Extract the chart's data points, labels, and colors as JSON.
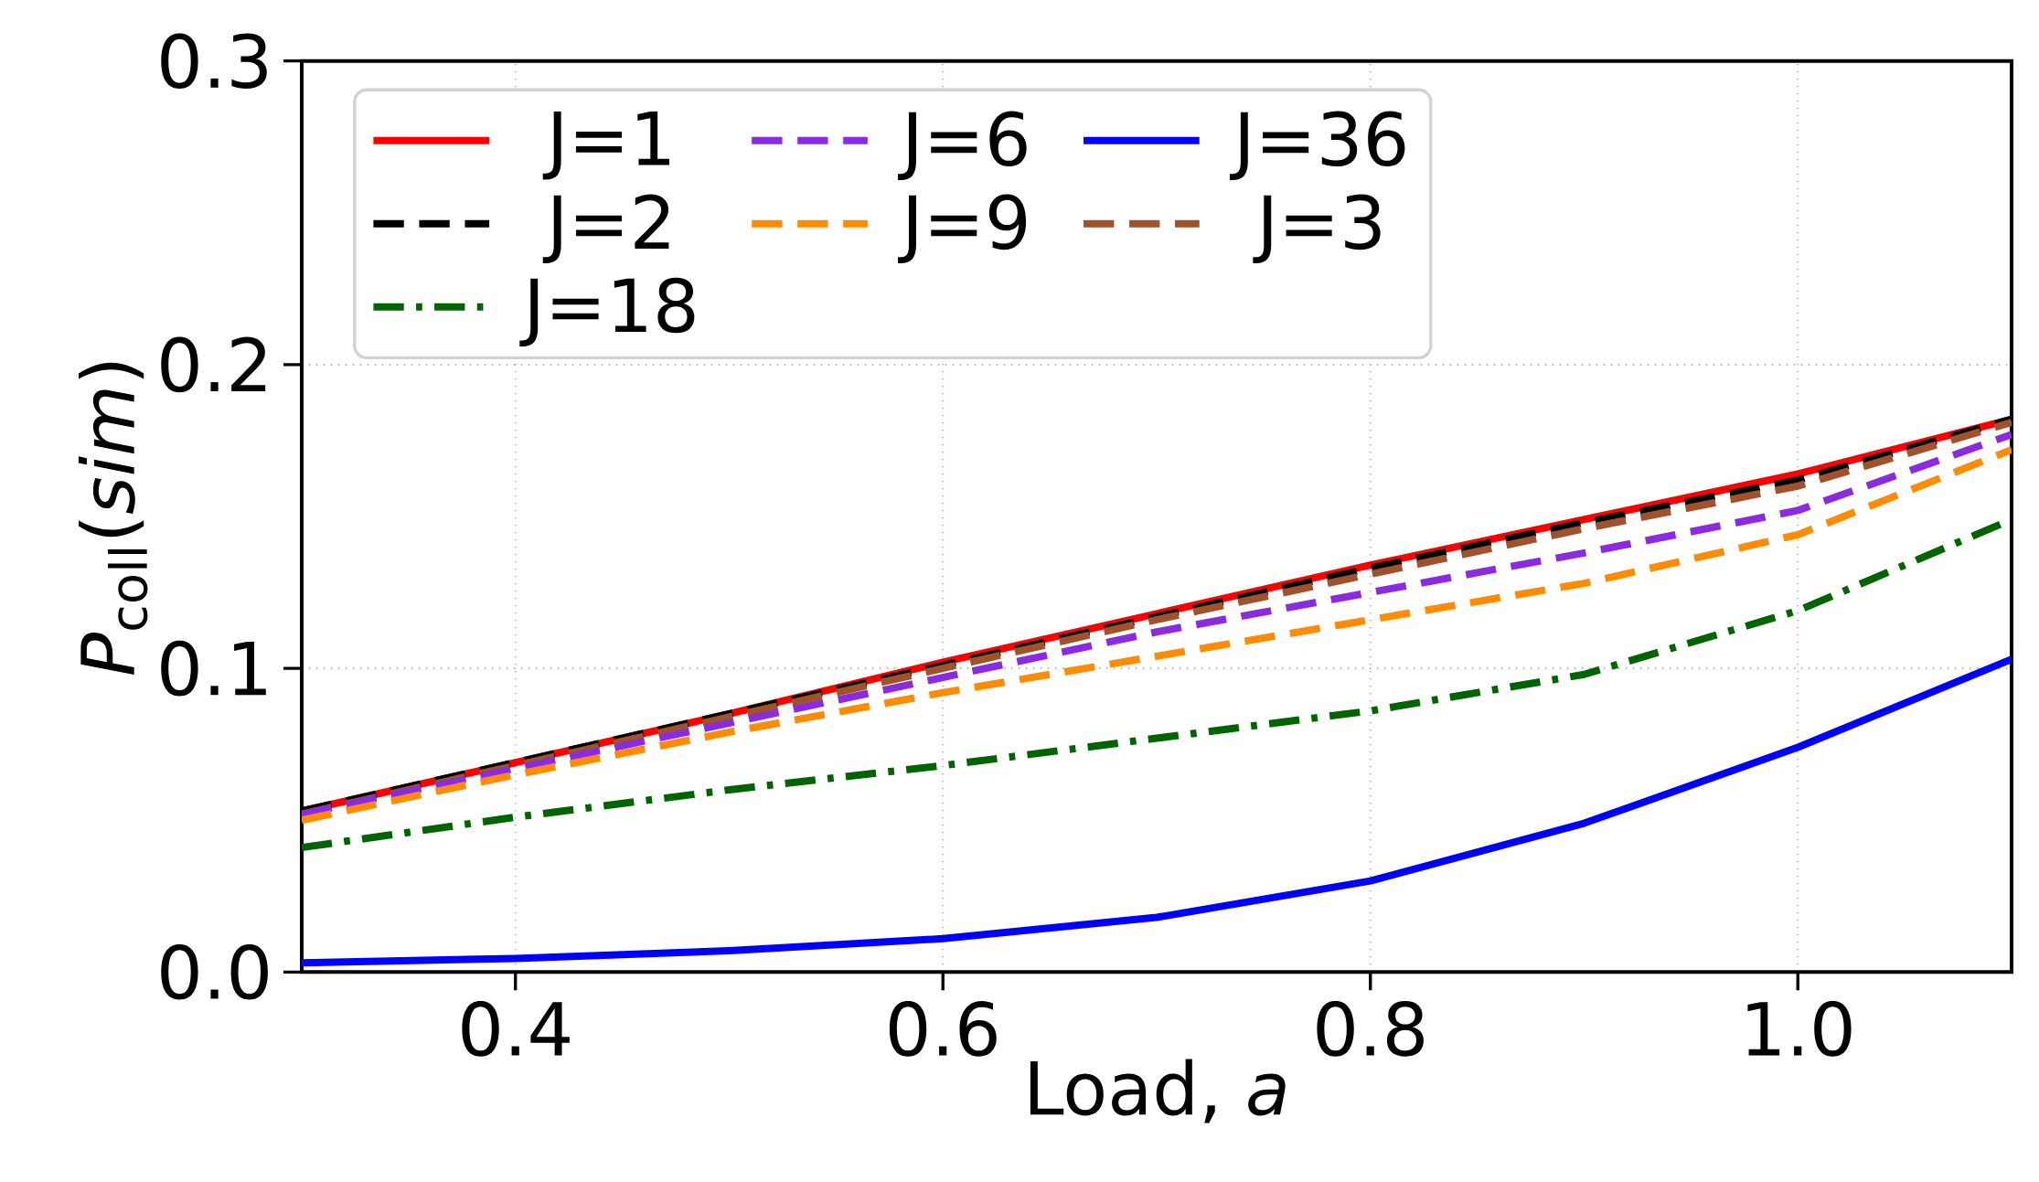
{
  "chart_data": {
    "type": "line",
    "xlabel": "Load, *a*",
    "ylabel": "*P*$_{coll}$(*sim*)",
    "x": [
      0.3,
      0.4,
      0.5,
      0.6,
      0.7,
      0.8,
      0.9,
      1.0,
      1.1
    ],
    "series": [
      {
        "name": "J=1",
        "color": "#ff0000",
        "line_style": "solid",
        "values": [
          0.053,
          0.069,
          0.085,
          0.102,
          0.118,
          0.134,
          0.149,
          0.164,
          0.182
        ]
      },
      {
        "name": "J=2",
        "color": "#000000",
        "line_style": "dashed",
        "values": [
          0.053,
          0.069,
          0.085,
          0.101,
          0.117,
          0.133,
          0.148,
          0.162,
          0.182
        ]
      },
      {
        "name": "J=3",
        "color": "#a0522d",
        "line_style": "dashed",
        "values": [
          0.052,
          0.068,
          0.084,
          0.1,
          0.116,
          0.131,
          0.146,
          0.16,
          0.181
        ]
      },
      {
        "name": "J=6",
        "color": "#8a2be2",
        "line_style": "dashed",
        "values": [
          0.052,
          0.067,
          0.082,
          0.097,
          0.112,
          0.125,
          0.138,
          0.152,
          0.177
        ]
      },
      {
        "name": "J=9",
        "color": "#ff8c00",
        "line_style": "dashed",
        "values": [
          0.05,
          0.065,
          0.079,
          0.092,
          0.104,
          0.116,
          0.128,
          0.144,
          0.172
        ]
      },
      {
        "name": "J=18",
        "color": "#006400",
        "line_style": "dashdot",
        "values": [
          0.041,
          0.051,
          0.06,
          0.068,
          0.077,
          0.086,
          0.098,
          0.119,
          0.149
        ]
      },
      {
        "name": "J=36",
        "color": "#0000ff",
        "line_style": "solid",
        "values": [
          0.003,
          0.0045,
          0.007,
          0.011,
          0.018,
          0.03,
          0.049,
          0.074,
          0.103
        ]
      }
    ],
    "xlim": [
      0.3,
      1.1
    ],
    "ylim": [
      0,
      0.3
    ],
    "xticks": [
      0.4,
      0.6,
      0.8,
      {
        "value": 1.0,
        "label": "1.0"
      }
    ],
    "yticks": [
      {
        "value": 0,
        "label": "0.0"
      },
      0.1,
      0.2,
      0.3
    ],
    "grid": true,
    "legend": "top left",
    "marker": "none"
  }
}
